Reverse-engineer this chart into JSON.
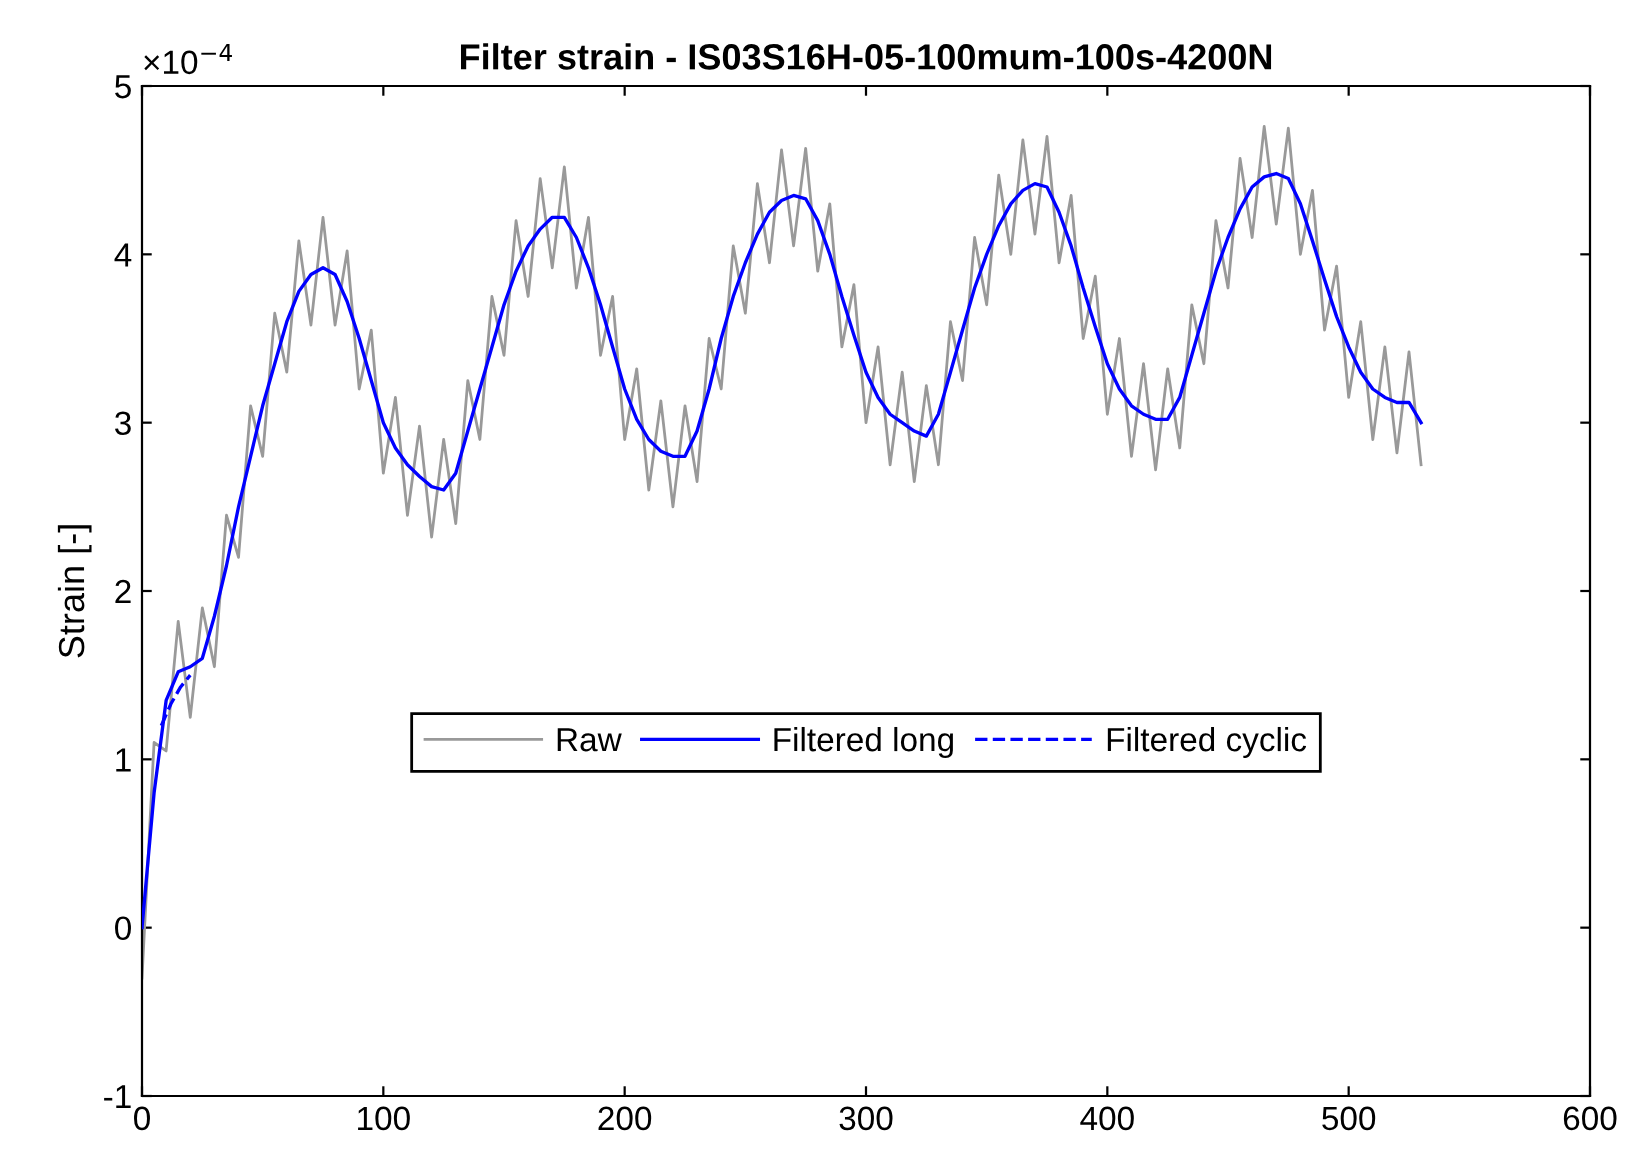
{
  "chart_data": {
    "type": "line",
    "title": "Filter strain - IS03S16H-05-100mum-100s-4200N",
    "ylabel": "Strain [-]",
    "annotations": [
      "×10$^{−4}$"
    ],
    "xlim": [
      0,
      600
    ],
    "xticks": [
      0,
      100,
      200,
      300,
      400,
      500,
      600
    ],
    "ylim": [
      -1,
      5
    ],
    "yticks": [
      -1,
      0,
      1,
      2,
      3,
      4,
      5
    ],
    "grid": false,
    "legend": "center",
    "marker": "none",
    "series": [
      {
        "name": "Raw",
        "color": "#999999",
        "line_style": "solid",
        "x": [
          0,
          5,
          10,
          15,
          20,
          25,
          30,
          35,
          40,
          45,
          50,
          55,
          60,
          65,
          70,
          75,
          80,
          85,
          90,
          95,
          100,
          105,
          110,
          115,
          120,
          125,
          130,
          135,
          140,
          145,
          150,
          155,
          160,
          165,
          170,
          175,
          180,
          185,
          190,
          195,
          200,
          205,
          210,
          215,
          220,
          225,
          230,
          235,
          240,
          245,
          250,
          255,
          260,
          265,
          270,
          275,
          280,
          285,
          290,
          295,
          300,
          305,
          310,
          315,
          320,
          325,
          330,
          335,
          340,
          345,
          350,
          355,
          360,
          365,
          370,
          375,
          380,
          385,
          390,
          395,
          400,
          405,
          410,
          415,
          420,
          425,
          430,
          435,
          440,
          445,
          450,
          455,
          460,
          465,
          470,
          475,
          480,
          485,
          490,
          495,
          500,
          505,
          510,
          515,
          520,
          525,
          530
        ],
        "values": [
          -0.3,
          1.1,
          1.05,
          1.82,
          1.25,
          1.9,
          1.55,
          2.45,
          2.2,
          3.1,
          2.8,
          3.65,
          3.3,
          4.08,
          3.58,
          4.22,
          3.58,
          4.02,
          3.2,
          3.55,
          2.7,
          3.15,
          2.45,
          2.98,
          2.32,
          2.9,
          2.4,
          3.25,
          2.9,
          3.75,
          3.4,
          4.2,
          3.75,
          4.45,
          3.92,
          4.52,
          3.8,
          4.22,
          3.4,
          3.75,
          2.9,
          3.32,
          2.6,
          3.13,
          2.5,
          3.1,
          2.65,
          3.5,
          3.2,
          4.05,
          3.65,
          4.42,
          3.95,
          4.62,
          4.05,
          4.63,
          3.9,
          4.3,
          3.45,
          3.82,
          3.0,
          3.45,
          2.75,
          3.3,
          2.65,
          3.22,
          2.75,
          3.6,
          3.25,
          4.1,
          3.7,
          4.47,
          4.0,
          4.68,
          4.12,
          4.7,
          3.95,
          4.35,
          3.5,
          3.87,
          3.05,
          3.5,
          2.8,
          3.35,
          2.72,
          3.32,
          2.85,
          3.7,
          3.35,
          4.2,
          3.8,
          4.57,
          4.1,
          4.76,
          4.18,
          4.75,
          4.0,
          4.38,
          3.55,
          3.93,
          3.15,
          3.6,
          2.9,
          3.45,
          2.82,
          3.42,
          2.75
        ]
      },
      {
        "name": "Filtered long",
        "color": "#0000ff",
        "line_style": "solid",
        "x": [
          0,
          5,
          10,
          15,
          20,
          25,
          30,
          35,
          40,
          45,
          50,
          55,
          60,
          65,
          70,
          75,
          80,
          85,
          90,
          95,
          100,
          105,
          110,
          115,
          120,
          125,
          130,
          135,
          140,
          145,
          150,
          155,
          160,
          165,
          170,
          175,
          180,
          185,
          190,
          195,
          200,
          205,
          210,
          215,
          220,
          225,
          230,
          235,
          240,
          245,
          250,
          255,
          260,
          265,
          270,
          275,
          280,
          285,
          290,
          295,
          300,
          305,
          310,
          315,
          320,
          325,
          330,
          335,
          340,
          345,
          350,
          355,
          360,
          365,
          370,
          375,
          380,
          385,
          390,
          395,
          400,
          405,
          410,
          415,
          420,
          425,
          430,
          435,
          440,
          445,
          450,
          455,
          460,
          465,
          470,
          475,
          480,
          485,
          490,
          495,
          500,
          505,
          510,
          515,
          520,
          525,
          530
        ],
        "values": [
          0,
          0.8,
          1.35,
          1.52,
          1.55,
          1.6,
          1.85,
          2.15,
          2.5,
          2.8,
          3.1,
          3.35,
          3.6,
          3.78,
          3.88,
          3.92,
          3.88,
          3.72,
          3.5,
          3.25,
          3.0,
          2.85,
          2.75,
          2.68,
          2.62,
          2.6,
          2.7,
          2.95,
          3.2,
          3.45,
          3.7,
          3.9,
          4.05,
          4.15,
          4.22,
          4.22,
          4.1,
          3.92,
          3.7,
          3.45,
          3.2,
          3.02,
          2.9,
          2.83,
          2.8,
          2.8,
          2.95,
          3.2,
          3.5,
          3.75,
          3.95,
          4.12,
          4.25,
          4.32,
          4.35,
          4.33,
          4.2,
          4.0,
          3.75,
          3.52,
          3.3,
          3.15,
          3.05,
          3.0,
          2.95,
          2.92,
          3.05,
          3.3,
          3.55,
          3.8,
          4.0,
          4.17,
          4.3,
          4.38,
          4.42,
          4.4,
          4.25,
          4.05,
          3.8,
          3.57,
          3.35,
          3.2,
          3.1,
          3.05,
          3.02,
          3.02,
          3.15,
          3.4,
          3.65,
          3.9,
          4.1,
          4.27,
          4.4,
          4.46,
          4.48,
          4.45,
          4.3,
          4.08,
          3.85,
          3.63,
          3.45,
          3.3,
          3.2,
          3.15,
          3.12,
          3.12,
          3.0
        ]
      },
      {
        "name": "Filtered cyclic",
        "color": "#0000ff",
        "line_style": "dashed",
        "x": [
          8,
          12,
          16,
          20
        ],
        "values": [
          1.2,
          1.33,
          1.43,
          1.5
        ]
      }
    ]
  }
}
